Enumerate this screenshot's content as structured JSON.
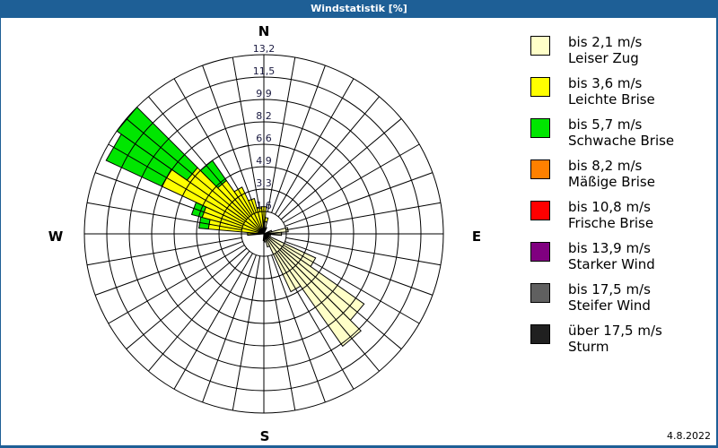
{
  "window": {
    "title": "Windstatistik [%]",
    "date": "4.8.2022"
  },
  "compass": {
    "n": "N",
    "e": "E",
    "s": "S",
    "w": "W"
  },
  "legend": [
    {
      "range": "bis 2,1 m/s",
      "name": "Leiser Zug",
      "color": "#ffffc8"
    },
    {
      "range": "bis 3,6 m/s",
      "name": "Leichte Brise",
      "color": "#ffff00"
    },
    {
      "range": "bis 5,7 m/s",
      "name": "Schwache Brise",
      "color": "#00e600"
    },
    {
      "range": "bis 8,2 m/s",
      "name": "Mäßige Brise",
      "color": "#ff8000"
    },
    {
      "range": "bis 10,8 m/s",
      "name": "Frische Brise",
      "color": "#ff0000"
    },
    {
      "range": "bis 13,9 m/s",
      "name": "Starker Wind",
      "color": "#800080"
    },
    {
      "range": "bis 17,5 m/s",
      "name": "Steifer Wind",
      "color": "#606060"
    },
    {
      "range": "über 17,5 m/s",
      "name": "Sturm",
      "color": "#202020"
    }
  ],
  "chart_data": {
    "type": "wind-rose",
    "title": "Windstatistik [%]",
    "unit": "%",
    "ring_labels": [
      "1,6",
      "3,3",
      "4,9",
      "6,6",
      "8,2",
      "9,9",
      "11,5",
      "13,2"
    ],
    "rmax": 13.2,
    "sector_width_deg": 10,
    "series_order": [
      "bis 2,1 m/s",
      "bis 3,6 m/s",
      "bis 5,7 m/s"
    ],
    "sectors": [
      {
        "dir": 0,
        "values": [
          0.6,
          1.4,
          0
        ]
      },
      {
        "dir": 10,
        "values": [
          0.9,
          0.3,
          0
        ]
      },
      {
        "dir": 20,
        "values": [
          0.5,
          0,
          0
        ]
      },
      {
        "dir": 70,
        "values": [
          0.6,
          0,
          0
        ]
      },
      {
        "dir": 80,
        "values": [
          1.8,
          0,
          0
        ]
      },
      {
        "dir": 90,
        "values": [
          1.3,
          0,
          0
        ]
      },
      {
        "dir": 100,
        "values": [
          0.5,
          0,
          0
        ]
      },
      {
        "dir": 120,
        "values": [
          4.2,
          0,
          0
        ]
      },
      {
        "dir": 130,
        "values": [
          9.0,
          0,
          0
        ]
      },
      {
        "dir": 140,
        "values": [
          10.1,
          0,
          0
        ]
      },
      {
        "dir": 150,
        "values": [
          4.7,
          0,
          0
        ]
      },
      {
        "dir": 160,
        "values": [
          1.0,
          0,
          0
        ]
      },
      {
        "dir": 170,
        "values": [
          0.6,
          0,
          0
        ]
      },
      {
        "dir": 180,
        "values": [
          0.5,
          0,
          0
        ]
      },
      {
        "dir": 270,
        "values": [
          0.4,
          0.8,
          0
        ]
      },
      {
        "dir": 280,
        "values": [
          0.4,
          3.7,
          0.7
        ]
      },
      {
        "dir": 290,
        "values": [
          0.4,
          4.3,
          0.8
        ]
      },
      {
        "dir": 300,
        "values": [
          0.4,
          7.9,
          4.5
        ]
      },
      {
        "dir": 310,
        "values": [
          0.4,
          6.5,
          6.3
        ]
      },
      {
        "dir": 320,
        "values": [
          0.4,
          4.4,
          1.8
        ]
      },
      {
        "dir": 330,
        "values": [
          0.4,
          3.4,
          0
        ]
      },
      {
        "dir": 340,
        "values": [
          0.4,
          2.3,
          0
        ]
      },
      {
        "dir": 350,
        "values": [
          0.4,
          1.6,
          0
        ]
      }
    ]
  }
}
